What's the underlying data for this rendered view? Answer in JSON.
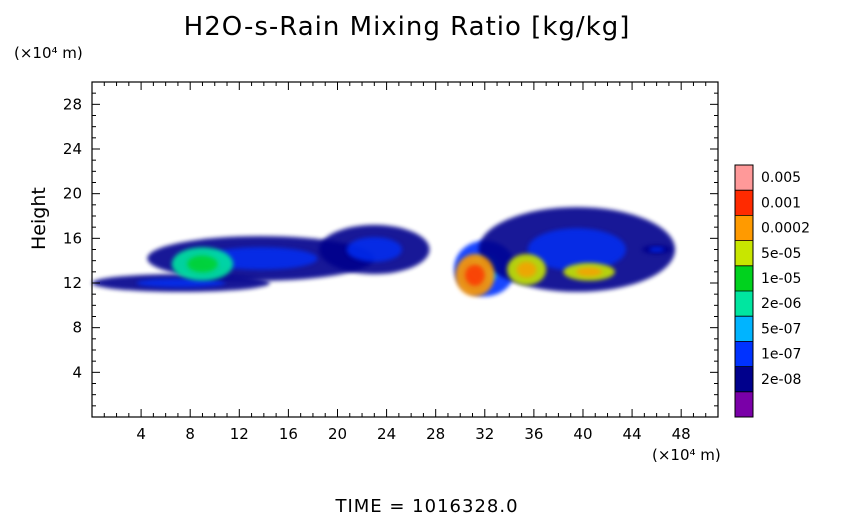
{
  "chart_data": {
    "type": "heatmap",
    "title": "H2O-s-Rain Mixing Ratio [kg/kg]",
    "ylabel": "Height",
    "x_unit": "(×10⁴ m)",
    "y_unit": "(×10⁴ m)",
    "xlim": [
      0,
      51
    ],
    "ylim": [
      0,
      30
    ],
    "xticks": [
      4,
      8,
      12,
      16,
      20,
      24,
      28,
      32,
      36,
      40,
      44,
      48
    ],
    "yticks": [
      4,
      8,
      12,
      16,
      20,
      24,
      28
    ],
    "colorbar": {
      "labels": [
        "0.005",
        "0.001",
        "0.0002",
        "5e-05",
        "1e-05",
        "2e-06",
        "5e-07",
        "1e-07",
        "2e-08"
      ],
      "colors": [
        "#ff9999",
        "#ff2a00",
        "#ff9a00",
        "#c8e600",
        "#00d21e",
        "#00e6a0",
        "#00b4ff",
        "#0032ff",
        "#00008c",
        "#7a00a8"
      ]
    },
    "regions": [
      {
        "x": [
          0,
          14.5
        ],
        "y": [
          11.2,
          12.8
        ],
        "level": "1e-07"
      },
      {
        "x": [
          4.5,
          23
        ],
        "y": [
          12.2,
          16.2
        ],
        "level": "1e-07"
      },
      {
        "x": [
          18.5,
          27.5
        ],
        "y": [
          12.8,
          17.2
        ],
        "level": "1e-07"
      },
      {
        "x": [
          29.5,
          34.5
        ],
        "y": [
          10.8,
          15.8
        ],
        "level": "5e-07"
      },
      {
        "x": [
          31.5,
          47.5
        ],
        "y": [
          11.2,
          18.8
        ],
        "level": "1e-07"
      },
      {
        "x": [
          6.5,
          11.5
        ],
        "y": [
          12.2,
          15.2
        ],
        "level": "1e-05"
      },
      {
        "x": [
          29.6,
          32.8
        ],
        "y": [
          10.8,
          14.6
        ],
        "level": "0.001"
      },
      {
        "x": [
          33.8,
          37
        ],
        "y": [
          11.8,
          14.6
        ],
        "level": "0.0002"
      },
      {
        "x": [
          38.4,
          42.6
        ],
        "y": [
          12.2,
          13.8
        ],
        "level": "0.0002"
      },
      {
        "x": [
          44.8,
          47.2
        ],
        "y": [
          14.6,
          15.4
        ],
        "level": "1e-07"
      }
    ]
  },
  "footer": "TIME = 1016328.0"
}
